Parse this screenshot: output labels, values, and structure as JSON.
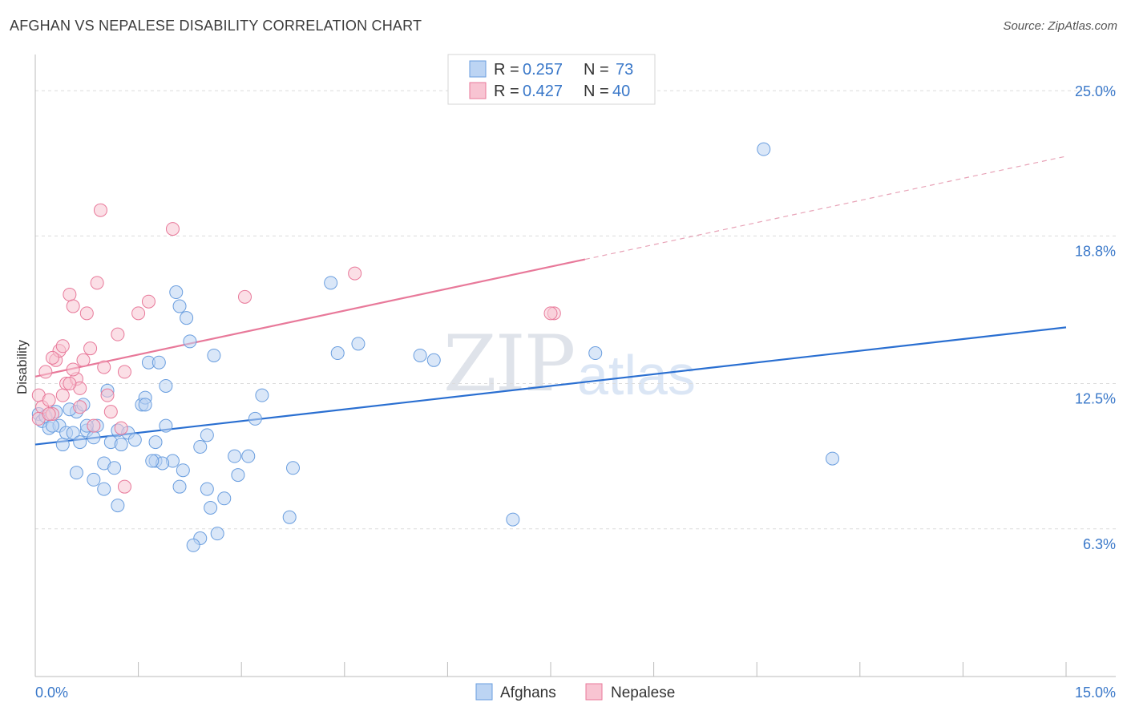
{
  "title": "AFGHAN VS NEPALESE DISABILITY CORRELATION CHART",
  "source": "Source: ZipAtlas.com",
  "watermark": {
    "zip": "ZIP",
    "atlas": "atlas"
  },
  "legend_top": [
    {
      "r_label": "R = ",
      "r": "0.257",
      "n_label": "N = ",
      "n": "73",
      "color": "#a9c8f0"
    },
    {
      "r_label": "R = ",
      "r": "0.427",
      "n_label": "N = ",
      "n": "40",
      "color": "#f7b8c8"
    }
  ],
  "legend_bottom": [
    "Afghans",
    "Nepalese"
  ],
  "chart_data": {
    "type": "scatter",
    "title": "AFGHAN VS NEPALESE DISABILITY CORRELATION CHART",
    "xlabel": "",
    "ylabel": "Disability",
    "xlim": [
      0,
      15
    ],
    "ylim": [
      0,
      26.2
    ],
    "x_tick_labels": [
      "0.0%",
      "15.0%"
    ],
    "y_ticks": [
      6.3,
      12.5,
      18.8,
      25.0
    ],
    "y_tick_labels": [
      "6.3%",
      "12.5%",
      "18.8%",
      "25.0%"
    ],
    "series": [
      {
        "name": "Afghans",
        "color": "#6a9edf",
        "fill": "#bcd4f3",
        "trend": {
          "x0": 0,
          "y0": 9.9,
          "x1": 15,
          "y1": 14.9,
          "dashed_from": null
        },
        "points": [
          [
            0.05,
            11.2
          ],
          [
            0.1,
            10.9
          ],
          [
            0.2,
            10.6
          ],
          [
            0.3,
            11.3
          ],
          [
            0.35,
            10.7
          ],
          [
            0.15,
            11.1
          ],
          [
            0.25,
            10.7
          ],
          [
            0.4,
            9.9
          ],
          [
            0.45,
            10.4
          ],
          [
            0.55,
            10.4
          ],
          [
            0.65,
            10.0
          ],
          [
            0.75,
            10.5
          ],
          [
            0.85,
            10.2
          ],
          [
            0.6,
            11.3
          ],
          [
            0.9,
            10.7
          ],
          [
            0.7,
            11.6
          ],
          [
            1.0,
            9.1
          ],
          [
            1.05,
            12.2
          ],
          [
            1.1,
            10.0
          ],
          [
            1.2,
            10.5
          ],
          [
            1.25,
            9.9
          ],
          [
            1.35,
            10.4
          ],
          [
            1.45,
            10.1
          ],
          [
            1.55,
            11.6
          ],
          [
            1.6,
            11.9
          ],
          [
            1.65,
            13.4
          ],
          [
            1.8,
            13.4
          ],
          [
            1.9,
            12.4
          ],
          [
            2.05,
            16.4
          ],
          [
            2.1,
            15.8
          ],
          [
            2.2,
            15.3
          ],
          [
            2.25,
            14.3
          ],
          [
            2.0,
            9.2
          ],
          [
            1.75,
            9.2
          ],
          [
            1.85,
            9.1
          ],
          [
            2.15,
            8.8
          ],
          [
            2.4,
            9.8
          ],
          [
            2.5,
            10.3
          ],
          [
            2.6,
            13.7
          ],
          [
            2.55,
            7.2
          ],
          [
            2.65,
            6.1
          ],
          [
            2.4,
            5.9
          ],
          [
            2.3,
            5.6
          ],
          [
            2.9,
            9.4
          ],
          [
            3.1,
            9.4
          ],
          [
            2.95,
            8.6
          ],
          [
            2.75,
            7.6
          ],
          [
            2.5,
            8.0
          ],
          [
            2.1,
            8.1
          ],
          [
            1.7,
            9.2
          ],
          [
            1.9,
            10.7
          ],
          [
            1.2,
            7.3
          ],
          [
            1.15,
            8.9
          ],
          [
            0.85,
            8.4
          ],
          [
            0.6,
            8.7
          ],
          [
            0.5,
            11.4
          ],
          [
            3.2,
            11.0
          ],
          [
            3.3,
            12.0
          ],
          [
            3.7,
            6.8
          ],
          [
            3.75,
            8.9
          ],
          [
            4.4,
            13.8
          ],
          [
            4.7,
            14.2
          ],
          [
            4.3,
            16.8
          ],
          [
            5.6,
            13.7
          ],
          [
            5.8,
            13.5
          ],
          [
            6.95,
            6.7
          ],
          [
            8.15,
            13.8
          ],
          [
            10.6,
            22.5
          ],
          [
            11.6,
            9.3
          ],
          [
            1.75,
            10.0
          ],
          [
            1.6,
            11.6
          ],
          [
            0.75,
            10.7
          ],
          [
            1.0,
            8.0
          ]
        ]
      },
      {
        "name": "Nepalese",
        "color": "#e8799a",
        "fill": "#f8c4d2",
        "trend": {
          "x0": 0,
          "y0": 12.8,
          "x1": 8.0,
          "y1": 17.8,
          "dashed_to_x": 15,
          "dashed_to_y": 22.2
        },
        "points": [
          [
            0.05,
            12.0
          ],
          [
            0.1,
            11.5
          ],
          [
            0.15,
            13.0
          ],
          [
            0.2,
            11.8
          ],
          [
            0.25,
            11.2
          ],
          [
            0.3,
            13.5
          ],
          [
            0.35,
            13.9
          ],
          [
            0.4,
            14.1
          ],
          [
            0.45,
            12.5
          ],
          [
            0.5,
            16.3
          ],
          [
            0.55,
            15.8
          ],
          [
            0.6,
            12.7
          ],
          [
            0.65,
            12.3
          ],
          [
            0.7,
            13.5
          ],
          [
            0.75,
            15.5
          ],
          [
            0.8,
            14.0
          ],
          [
            0.9,
            16.8
          ],
          [
            0.95,
            19.9
          ],
          [
            1.0,
            13.2
          ],
          [
            1.05,
            12.0
          ],
          [
            1.1,
            11.3
          ],
          [
            1.2,
            14.6
          ],
          [
            1.3,
            13.0
          ],
          [
            1.5,
            15.5
          ],
          [
            1.65,
            16.0
          ],
          [
            2.0,
            19.1
          ],
          [
            3.05,
            16.2
          ],
          [
            4.65,
            17.2
          ],
          [
            7.55,
            15.5
          ],
          [
            0.4,
            12.0
          ],
          [
            0.25,
            13.6
          ],
          [
            0.55,
            13.1
          ],
          [
            0.05,
            11.0
          ],
          [
            0.2,
            11.2
          ],
          [
            0.5,
            12.5
          ],
          [
            0.85,
            10.7
          ],
          [
            1.25,
            10.6
          ],
          [
            1.3,
            8.1
          ],
          [
            0.65,
            11.5
          ],
          [
            7.5,
            15.5
          ]
        ]
      }
    ]
  }
}
